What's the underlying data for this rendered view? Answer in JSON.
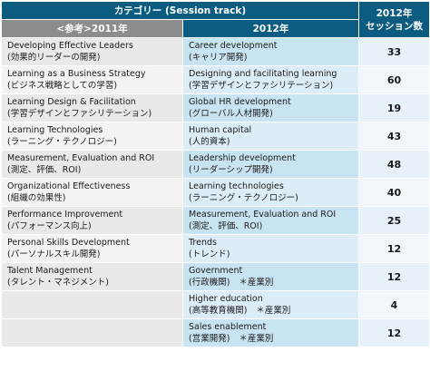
{
  "header": {
    "category": "カテゴリー (Session track)",
    "year2011": "<参考>2011年",
    "year2012": "2012年",
    "count_line1": "2012年",
    "count_line2": "セッション数"
  },
  "rows": [
    {
      "old_en": "Developing Effective Leaders",
      "old_ja": "(効果的リーダーの開発)",
      "new_en": "Career development",
      "new_ja": "(キャリア開発)",
      "count": "33"
    },
    {
      "old_en": "Learning as a Business Strategy",
      "old_ja": "(ビジネス戦略としての学習)",
      "new_en": "Designing and facilitating learning",
      "new_ja": "(学習デザインとファシリテーション)",
      "count": "60"
    },
    {
      "old_en": "Learning Design & Facilitation",
      "old_ja": "(学習デザインとファシリテーション)",
      "new_en": "Global HR development",
      "new_ja": "(グローバル人材開発)",
      "count": "19"
    },
    {
      "old_en": "Learning Technologies",
      "old_ja": "(ラーニング・テクノロジー)",
      "new_en": "Human capital",
      "new_ja": "(人的資本)",
      "count": "43"
    },
    {
      "old_en": "Measurement, Evaluation and ROI",
      "old_ja": "(測定、評価、ROI)",
      "new_en": "Leadership development",
      "new_ja": "(リーダーシップ開発)",
      "count": "48"
    },
    {
      "old_en": "Organizational Effectiveness",
      "old_ja": "(組織の効果性)",
      "new_en": "Learning technologies",
      "new_ja": "(ラーニング・テクノロジー)",
      "count": "40"
    },
    {
      "old_en": "Performance Improvement",
      "old_ja": "(パフォーマンス向上)",
      "new_en": "Measurement, Evaluation and ROI",
      "new_ja": "(測定、評価、ROI)",
      "count": "25"
    },
    {
      "old_en": "Personal Skills Development",
      "old_ja": "(パーソナルスキル開発)",
      "new_en": "Trends",
      "new_ja": "(トレンド)",
      "count": "12"
    },
    {
      "old_en": "Talent Management",
      "old_ja": "(タレント・マネジメント)",
      "new_en": "Government",
      "new_ja": "(行政機関)",
      "new_suffix": "＊産業別",
      "count": "12"
    },
    {
      "old_en": "",
      "old_ja": "",
      "new_en": "Higher education",
      "new_ja": "(高等教育機関)",
      "new_suffix": "＊産業別",
      "count": "4"
    },
    {
      "old_en": "",
      "old_ja": "",
      "new_en": "Sales enablement",
      "new_ja": "(営業開発)",
      "new_suffix": "＊産業別",
      "count": "12"
    }
  ],
  "colors": {
    "header_blue": "#0b5c80",
    "header_gray": "#8c8c8c",
    "old_cell": "#e9e9e9",
    "new_cell": "#c8e3f1",
    "count_cell": "#e6f1f8"
  }
}
